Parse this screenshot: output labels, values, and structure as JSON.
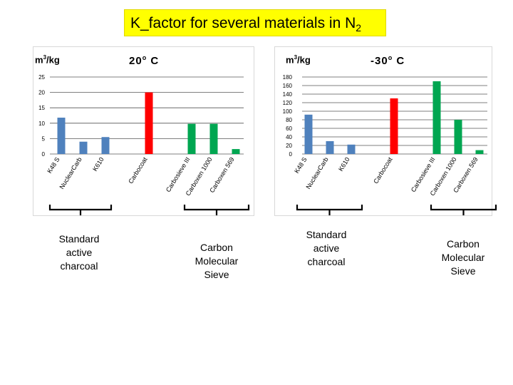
{
  "title": {
    "main": "K_factor for several materials in N",
    "subscript": "2"
  },
  "chart_data": [
    {
      "type": "bar",
      "title": "20",
      "title_sup": "o",
      "title_suffix": " C",
      "ylabel": "m",
      "ylabel_sup": "3",
      "ylabel_suffix": "/kg",
      "ylim": [
        0,
        25
      ],
      "yticks": [
        0,
        5,
        10,
        15,
        20,
        25
      ],
      "grid": true,
      "categories": [
        "K48 S",
        "NuclearCarb",
        "K610",
        "Carbocoat",
        "Carbosieve III",
        "Carboxen 1000",
        "Carboxen 569"
      ],
      "values": [
        11.8,
        4,
        5.5,
        20,
        9.8,
        9.8,
        1.6
      ],
      "colors": [
        "#4f81bd",
        "#4f81bd",
        "#4f81bd",
        "#ff0000",
        "#00a651",
        "#00a651",
        "#00a651"
      ]
    },
    {
      "type": "bar",
      "title": "-30",
      "title_sup": "o",
      "title_suffix": " C",
      "ylabel": "m",
      "ylabel_sup": "3",
      "ylabel_suffix": "/kg",
      "ylim": [
        0,
        180
      ],
      "yticks": [
        0,
        20,
        40,
        60,
        80,
        100,
        120,
        140,
        160,
        180
      ],
      "grid": true,
      "categories": [
        "K48 S",
        "NuclearCarb",
        "K610",
        "Carbocoat",
        "Carbosieve III",
        "Carboxen 1000",
        "Carboxen 569"
      ],
      "values": [
        92,
        30,
        22,
        130,
        170,
        80,
        9
      ],
      "colors": [
        "#4f81bd",
        "#4f81bd",
        "#4f81bd",
        "#ff0000",
        "#00a651",
        "#00a651",
        "#00a651"
      ]
    }
  ],
  "group_labels": [
    {
      "lines": [
        "Standard",
        "active",
        "charcoal"
      ]
    },
    {
      "lines": [
        "Carbon",
        "Molecular",
        "Sieve"
      ]
    },
    {
      "lines": [
        "Standard",
        "active",
        "charcoal"
      ]
    },
    {
      "lines": [
        "Carbon",
        "Molecular",
        "Sieve"
      ]
    }
  ]
}
